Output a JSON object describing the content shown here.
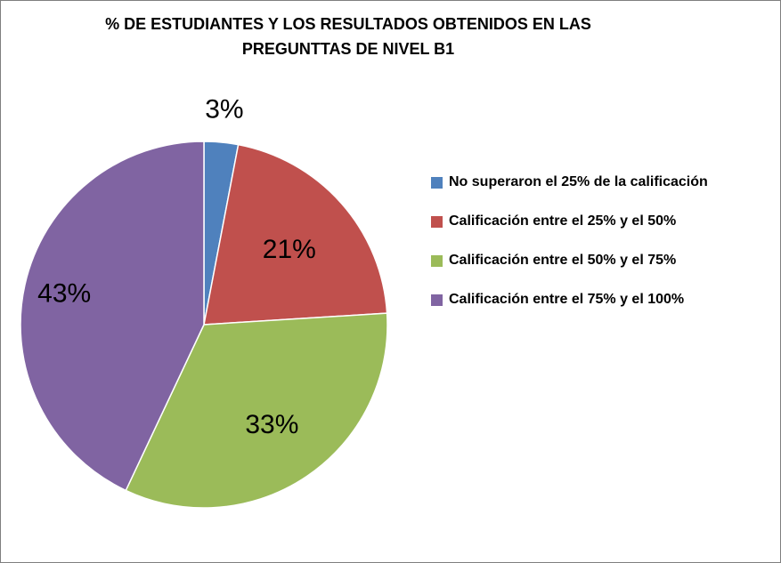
{
  "chart_data": {
    "type": "pie",
    "title_lines": [
      "% DE ESTUDIANTES Y LOS RESULTADOS OBTENIDOS EN LAS",
      "PREGUNTTAS DE NIVEL B1"
    ],
    "legend_position": "right",
    "slices": [
      {
        "label": "No superaron el 25% de la calificación",
        "value": 3,
        "display": "3%",
        "color": "#4F81BD"
      },
      {
        "label": "Calificación entre el 25% y el 50%",
        "value": 21,
        "display": "21%",
        "color": "#C0504D"
      },
      {
        "label": "Calificación entre el 50% y el 75%",
        "value": 33,
        "display": "33%",
        "color": "#9BBB59"
      },
      {
        "label": "Calificación entre el 75% y el 100%",
        "value": 43,
        "display": "43%",
        "color": "#8064A2"
      }
    ]
  }
}
